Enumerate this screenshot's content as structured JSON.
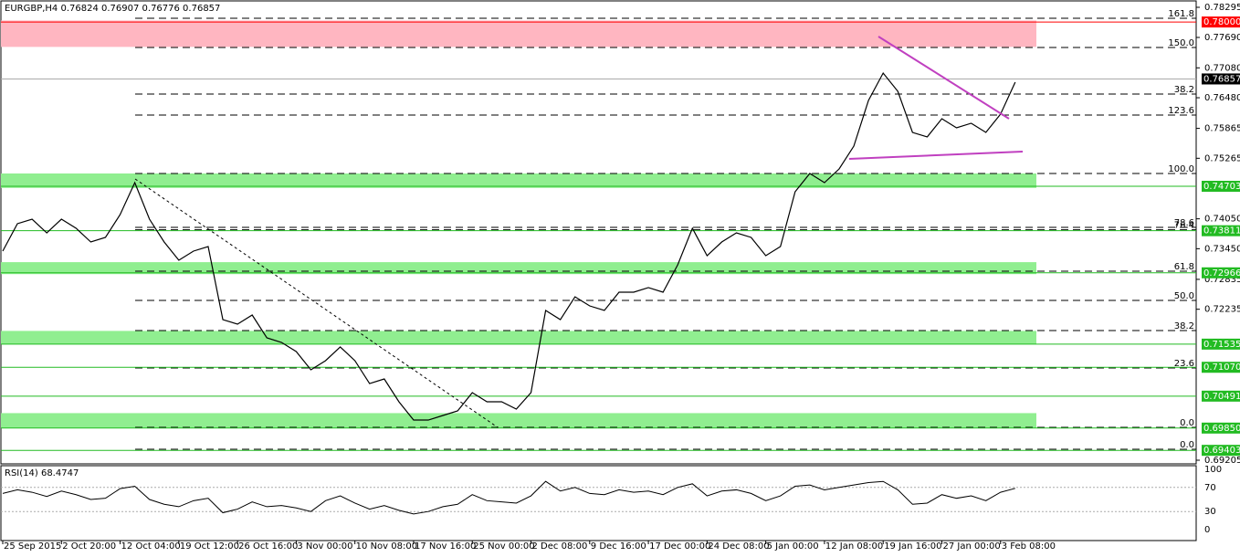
{
  "chart_data": {
    "type": "line",
    "title": "EURGBP,H4  0.76824 0.76907 0.76776 0.76857",
    "categories": [
      "25 Sep 2015",
      null,
      null,
      null,
      "2 Oct 20:00",
      null,
      null,
      null,
      "12 Oct 04:00",
      null,
      null,
      null,
      "19 Oct 12:00",
      null,
      null,
      null,
      "26 Oct 16:00",
      null,
      null,
      null,
      "3 Nov 00:00",
      null,
      null,
      null,
      "10 Nov 08:00",
      null,
      null,
      null,
      "17 Nov 16:00",
      null,
      null,
      null,
      "25 Nov 00:00",
      null,
      null,
      null,
      "2 Dec 08:00",
      null,
      null,
      null,
      "9 Dec 16:00",
      null,
      null,
      null,
      "17 Dec 00:00",
      null,
      null,
      null,
      "24 Dec 08:00",
      null,
      null,
      null,
      "5 Jan 00:00",
      null,
      null,
      null,
      "12 Jan 08:00",
      null,
      null,
      null,
      "19 Jan 16:00",
      null,
      null,
      null,
      "27 Jan 00:00",
      null,
      null,
      null,
      "3 Feb 08:00",
      null
    ],
    "series": [
      {
        "color": "#000000",
        "values": [
          0.73402,
          0.73952,
          0.74043,
          0.73768,
          0.74043,
          0.7386,
          0.73585,
          0.73677,
          0.74135,
          0.74776,
          0.74043,
          0.73585,
          0.73219,
          0.73402,
          0.73493,
          0.72027,
          0.71936,
          0.72119,
          0.71661,
          0.71569,
          0.71386,
          0.71019,
          0.71203,
          0.71478,
          0.71203,
          0.70744,
          0.70836,
          0.70378,
          0.70011,
          0.70011,
          0.70103,
          0.70195,
          0.70561,
          0.70378,
          0.70378,
          0.70231,
          0.70561,
          0.72211,
          0.72027,
          0.72485,
          0.72302,
          0.72211,
          0.72577,
          0.72577,
          0.72669,
          0.72577,
          0.73127,
          0.7386,
          0.7331,
          0.73585,
          0.73768,
          0.73677,
          0.7331,
          0.73493,
          0.74593,
          0.7496,
          0.74776,
          0.75051,
          0.75509,
          0.76426,
          0.76975,
          0.76609,
          0.75784,
          0.75693,
          0.76059,
          0.75876,
          0.75968,
          0.75784,
          0.76151,
          0.76792
        ]
      }
    ],
    "ylim": [
      0.69205,
      0.78295
    ],
    "yticks": [
      {
        "value": 0.78295,
        "label": "0.78295"
      },
      {
        "value": 0.7769,
        "label": "0.77690"
      },
      {
        "value": 0.7708,
        "label": "0.77080"
      },
      {
        "value": 0.7648,
        "label": "0.76480"
      },
      {
        "value": 0.75865,
        "label": "0.75865"
      },
      {
        "value": 0.75265,
        "label": "0.75265"
      },
      {
        "value": 0.7405,
        "label": "0.74050"
      },
      {
        "value": 0.7345,
        "label": "0.73450"
      },
      {
        "value": 0.72835,
        "label": "0.72835"
      },
      {
        "value": 0.72235,
        "label": "0.72235"
      },
      {
        "value": 0.69205,
        "label": "0.69205"
      }
    ],
    "zones": [
      {
        "from": 0.775,
        "to": 0.7803,
        "color": "#ffb6c1"
      },
      {
        "from": 0.7467,
        "to": 0.7496,
        "color": "#90ee90"
      },
      {
        "from": 0.7294,
        "to": 0.7318,
        "color": "#90ee90"
      },
      {
        "from": 0.7153,
        "to": 0.718,
        "color": "#90ee90"
      },
      {
        "from": 0.6985,
        "to": 0.7015,
        "color": "#90ee90"
      }
    ],
    "levels": [
      {
        "label": "161.8",
        "value": 0.78075
      },
      {
        "label": "150.0",
        "value": 0.77489
      },
      {
        "label": "38.2",
        "value": 0.76554
      },
      {
        "label": "123.6",
        "value": 0.76132
      },
      {
        "label": "100.0",
        "value": 0.7496
      },
      {
        "label": "78.6",
        "value": 0.73878
      },
      {
        "label": "76.4",
        "value": 0.7383
      },
      {
        "label": "61.8",
        "value": 0.72999
      },
      {
        "label": "50.0",
        "value": 0.72412
      },
      {
        "label": "38.2",
        "value": 0.71807
      },
      {
        "label": "23.6",
        "value": 0.71056
      },
      {
        "label": "0.0",
        "value": 0.69865
      },
      {
        "label": "0.0",
        "value": 0.69425
      }
    ],
    "price_labels": [
      {
        "value": 0.78,
        "label": "0.78000",
        "color": "#ff0000"
      },
      {
        "value": 0.76857,
        "label": "0.76857",
        "color": "#000000"
      },
      {
        "value": 0.74703,
        "label": "0.74703",
        "color": "#22bb22"
      },
      {
        "value": 0.73811,
        "label": "0.73811",
        "color": "#22bb22"
      },
      {
        "value": 0.72966,
        "label": "0.72966",
        "color": "#22bb22"
      },
      {
        "value": 0.71535,
        "label": "0.71535",
        "color": "#22bb22"
      },
      {
        "value": 0.7107,
        "label": "0.71070",
        "color": "#22bb22"
      },
      {
        "value": 0.70491,
        "label": "0.70491",
        "color": "#22bb22"
      },
      {
        "value": 0.6985,
        "label": "0.69850",
        "color": "#22bb22"
      },
      {
        "value": 0.69403,
        "label": "0.69403",
        "color": "#22bb22"
      }
    ],
    "rsi": {
      "title": "RSI(14) 68.4747",
      "ylim": [
        0,
        100
      ],
      "yticks": [
        100,
        70,
        30,
        0
      ],
      "values": [
        60,
        66,
        62,
        55,
        64,
        58,
        50,
        52,
        68,
        72,
        50,
        42,
        38,
        48,
        52,
        28,
        34,
        46,
        38,
        40,
        36,
        30,
        48,
        56,
        44,
        34,
        40,
        32,
        26,
        30,
        38,
        42,
        58,
        48,
        46,
        44,
        56,
        80,
        64,
        70,
        60,
        58,
        66,
        62,
        64,
        58,
        70,
        76,
        56,
        64,
        66,
        60,
        48,
        56,
        72,
        74,
        66,
        70,
        74,
        78,
        80,
        66,
        42,
        44,
        58,
        52,
        56,
        48,
        62,
        68.4747
      ]
    }
  }
}
